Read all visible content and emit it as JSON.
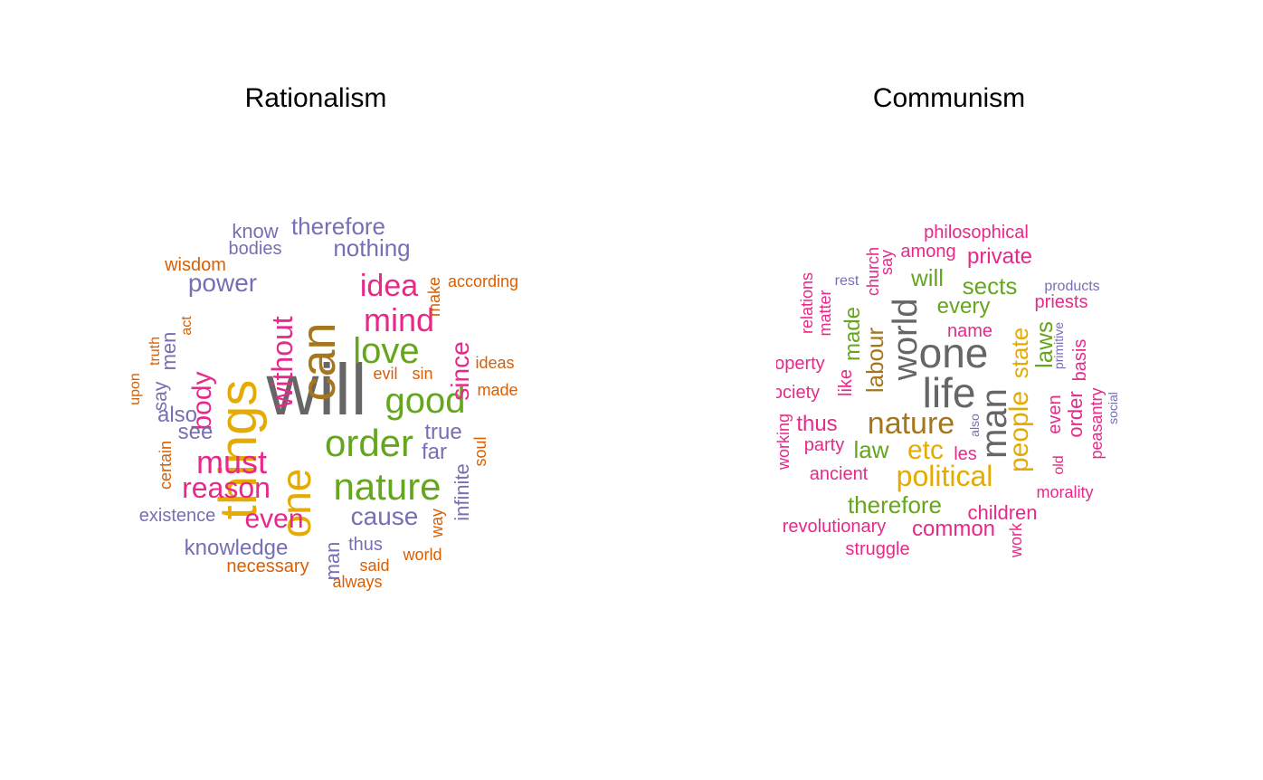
{
  "chart_data": [
    {
      "type": "wordcloud",
      "title": "Rationalism",
      "words": [
        {
          "text": "will",
          "color": "#666666"
        },
        {
          "text": "can",
          "color": "#A6761D"
        },
        {
          "text": "things",
          "color": "#E6AB02"
        },
        {
          "text": "one",
          "color": "#E6AB02"
        },
        {
          "text": "nature",
          "color": "#66A61E"
        },
        {
          "text": "order",
          "color": "#66A61E"
        },
        {
          "text": "good",
          "color": "#66A61E"
        },
        {
          "text": "love",
          "color": "#66A61E"
        },
        {
          "text": "mind",
          "color": "#E7298A"
        },
        {
          "text": "idea",
          "color": "#E7298A"
        },
        {
          "text": "must",
          "color": "#E7298A"
        },
        {
          "text": "reason",
          "color": "#E7298A"
        },
        {
          "text": "without",
          "color": "#E7298A"
        },
        {
          "text": "since",
          "color": "#E7298A"
        },
        {
          "text": "even",
          "color": "#E7298A"
        },
        {
          "text": "body",
          "color": "#E7298A"
        },
        {
          "text": "therefore",
          "color": "#7570B3"
        },
        {
          "text": "nothing",
          "color": "#7570B3"
        },
        {
          "text": "power",
          "color": "#7570B3"
        },
        {
          "text": "cause",
          "color": "#7570B3"
        },
        {
          "text": "knowledge",
          "color": "#7570B3"
        },
        {
          "text": "true",
          "color": "#7570B3"
        },
        {
          "text": "far",
          "color": "#7570B3"
        },
        {
          "text": "also",
          "color": "#7570B3"
        },
        {
          "text": "see",
          "color": "#7570B3"
        },
        {
          "text": "men",
          "color": "#7570B3"
        },
        {
          "text": "man",
          "color": "#7570B3"
        },
        {
          "text": "infinite",
          "color": "#7570B3"
        },
        {
          "text": "know",
          "color": "#7570B3"
        },
        {
          "text": "bodies",
          "color": "#7570B3"
        },
        {
          "text": "say",
          "color": "#7570B3"
        },
        {
          "text": "existence",
          "color": "#7570B3"
        },
        {
          "text": "thus",
          "color": "#7570B3"
        },
        {
          "text": "wisdom",
          "color": "#D95F02"
        },
        {
          "text": "according",
          "color": "#D95F02"
        },
        {
          "text": "make",
          "color": "#D95F02"
        },
        {
          "text": "act",
          "color": "#D95F02"
        },
        {
          "text": "truth",
          "color": "#D95F02"
        },
        {
          "text": "upon",
          "color": "#D95F02"
        },
        {
          "text": "evil",
          "color": "#D95F02"
        },
        {
          "text": "sin",
          "color": "#D95F02"
        },
        {
          "text": "ideas",
          "color": "#D95F02"
        },
        {
          "text": "made",
          "color": "#D95F02"
        },
        {
          "text": "soul",
          "color": "#D95F02"
        },
        {
          "text": "certain",
          "color": "#D95F02"
        },
        {
          "text": "way",
          "color": "#D95F02"
        },
        {
          "text": "necessary",
          "color": "#D95F02"
        },
        {
          "text": "said",
          "color": "#D95F02"
        },
        {
          "text": "world",
          "color": "#D95F02"
        },
        {
          "text": "always",
          "color": "#D95F02"
        }
      ]
    },
    {
      "type": "wordcloud",
      "title": "Communism",
      "words": [
        {
          "text": "one",
          "color": "#666666"
        },
        {
          "text": "life",
          "color": "#666666"
        },
        {
          "text": "man",
          "color": "#666666"
        },
        {
          "text": "world",
          "color": "#666666"
        },
        {
          "text": "nature",
          "color": "#A6761D"
        },
        {
          "text": "labour",
          "color": "#A6761D"
        },
        {
          "text": "state",
          "color": "#E6AB02"
        },
        {
          "text": "people",
          "color": "#E6AB02"
        },
        {
          "text": "political",
          "color": "#E6AB02"
        },
        {
          "text": "etc",
          "color": "#E6AB02"
        },
        {
          "text": "will",
          "color": "#66A61E"
        },
        {
          "text": "sects",
          "color": "#66A61E"
        },
        {
          "text": "every",
          "color": "#66A61E"
        },
        {
          "text": "laws",
          "color": "#66A61E"
        },
        {
          "text": "made",
          "color": "#66A61E"
        },
        {
          "text": "law",
          "color": "#66A61E"
        },
        {
          "text": "therefore",
          "color": "#66A61E"
        },
        {
          "text": "philosophical",
          "color": "#E7298A"
        },
        {
          "text": "among",
          "color": "#E7298A"
        },
        {
          "text": "private",
          "color": "#E7298A"
        },
        {
          "text": "priests",
          "color": "#E7298A"
        },
        {
          "text": "name",
          "color": "#E7298A"
        },
        {
          "text": "church",
          "color": "#E7298A"
        },
        {
          "text": "say",
          "color": "#E7298A"
        },
        {
          "text": "relations",
          "color": "#E7298A"
        },
        {
          "text": "matter",
          "color": "#E7298A"
        },
        {
          "text": "property",
          "color": "#E7298A"
        },
        {
          "text": "society",
          "color": "#E7298A"
        },
        {
          "text": "like",
          "color": "#E7298A"
        },
        {
          "text": "thus",
          "color": "#E7298A"
        },
        {
          "text": "party",
          "color": "#E7298A"
        },
        {
          "text": "working",
          "color": "#E7298A"
        },
        {
          "text": "ancient",
          "color": "#E7298A"
        },
        {
          "text": "les",
          "color": "#E7298A"
        },
        {
          "text": "even",
          "color": "#E7298A"
        },
        {
          "text": "order",
          "color": "#E7298A"
        },
        {
          "text": "basis",
          "color": "#E7298A"
        },
        {
          "text": "peasantry",
          "color": "#E7298A"
        },
        {
          "text": "old",
          "color": "#E7298A"
        },
        {
          "text": "morality",
          "color": "#E7298A"
        },
        {
          "text": "children",
          "color": "#E7298A"
        },
        {
          "text": "common",
          "color": "#E7298A"
        },
        {
          "text": "revolutionary",
          "color": "#E7298A"
        },
        {
          "text": "struggle",
          "color": "#E7298A"
        },
        {
          "text": "work",
          "color": "#E7298A"
        },
        {
          "text": "rest",
          "color": "#7570B3"
        },
        {
          "text": "products",
          "color": "#7570B3"
        },
        {
          "text": "primitive",
          "color": "#7570B3"
        },
        {
          "text": "social",
          "color": "#7570B3"
        },
        {
          "text": "also",
          "color": "#7570B3"
        }
      ]
    }
  ]
}
